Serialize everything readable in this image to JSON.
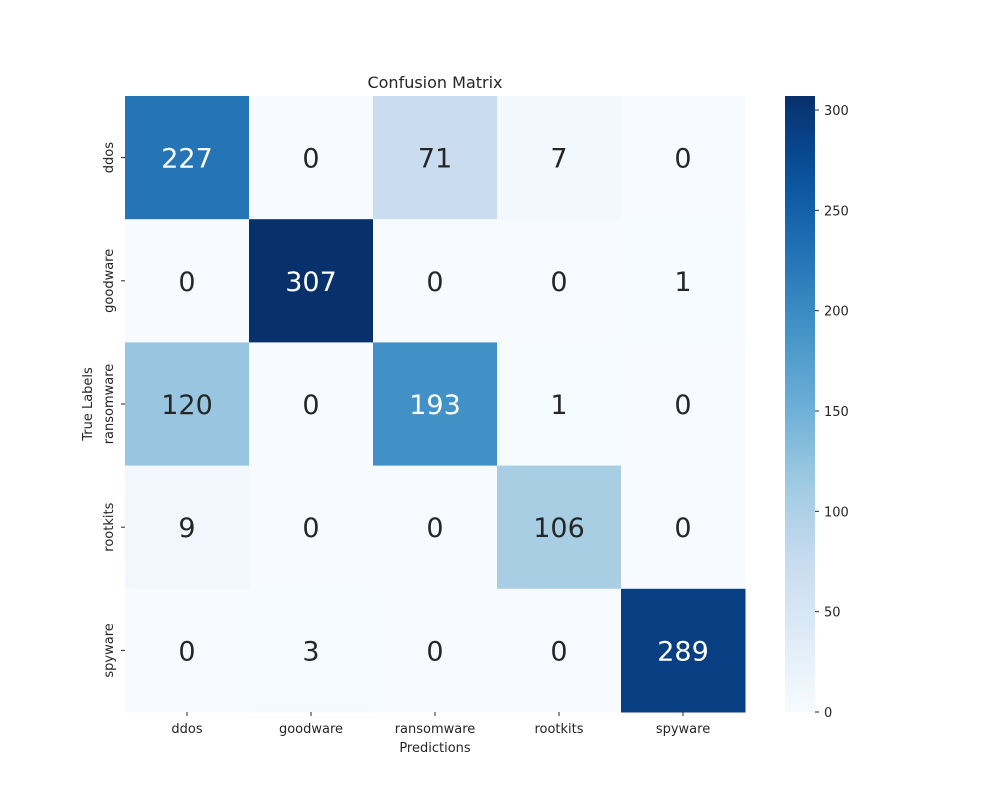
{
  "chart_data": {
    "type": "heatmap",
    "title": "Confusion Matrix",
    "xlabel": "Predictions",
    "ylabel": "True Labels",
    "x_categories": [
      "ddos",
      "goodware",
      "ransomware",
      "rootkits",
      "spyware"
    ],
    "y_categories": [
      "ddos",
      "goodware",
      "ransomware",
      "rootkits",
      "spyware"
    ],
    "values": [
      [
        227,
        0,
        71,
        7,
        0
      ],
      [
        0,
        307,
        0,
        0,
        1
      ],
      [
        120,
        0,
        193,
        1,
        0
      ],
      [
        9,
        0,
        0,
        106,
        0
      ],
      [
        0,
        3,
        0,
        0,
        289
      ]
    ],
    "colormap": "Blues",
    "colorbar": {
      "range": [
        0,
        307
      ],
      "ticks": [
        0,
        50,
        100,
        150,
        200,
        250,
        300
      ]
    },
    "annotated": true,
    "grid": false,
    "legend": "none"
  }
}
